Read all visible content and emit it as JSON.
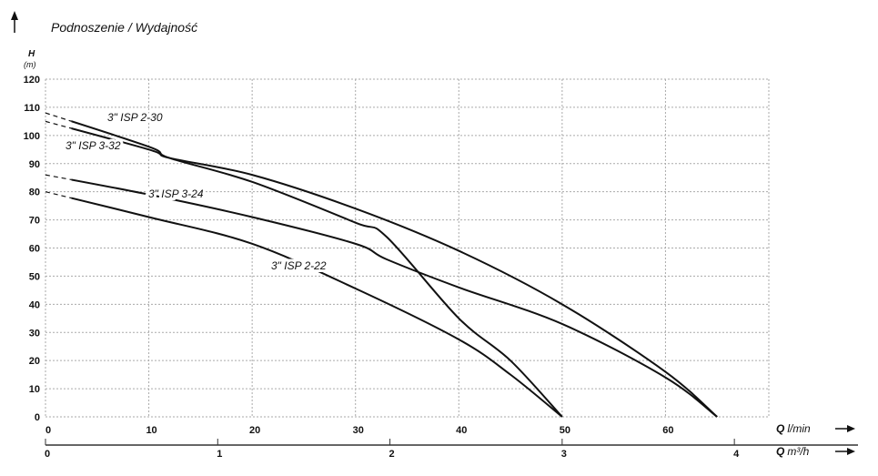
{
  "chart_data": {
    "type": "line",
    "title": "Podnoszenie / Wydajność",
    "ylabel": "H",
    "yunit": "(m)",
    "xlabel": "Q",
    "xunit": "l/min",
    "x2label": "Q",
    "x2unit": "m³/h",
    "xlim": [
      0,
      70
    ],
    "ylim": [
      0,
      120
    ],
    "grid": true,
    "grid_style": "dotted",
    "xticks": [
      "0",
      "10",
      "20",
      "30",
      "40",
      "50",
      "60"
    ],
    "xtick_values": [
      0,
      10,
      20,
      30,
      40,
      50,
      60
    ],
    "x2ticks": [
      "0",
      "1",
      "2",
      "3",
      "4"
    ],
    "x2tick_values": [
      0,
      1,
      2,
      3,
      4
    ],
    "yticks": [
      "0",
      "10",
      "20",
      "30",
      "40",
      "50",
      "60",
      "70",
      "80",
      "90",
      "100",
      "110",
      "120"
    ],
    "ytick_values": [
      0,
      10,
      20,
      30,
      40,
      50,
      60,
      70,
      80,
      90,
      100,
      110,
      120
    ],
    "dashed_below_q": 2.5,
    "series": [
      {
        "name": "3\" ISP 2-30",
        "x": [
          0,
          10,
          12,
          20,
          30,
          33,
          40,
          45,
          50
        ],
        "y": [
          108,
          96,
          92,
          83.5,
          69,
          64,
          35,
          20,
          0
        ]
      },
      {
        "name": "3\" ISP 3-32",
        "x": [
          0,
          10,
          12,
          20,
          30,
          40,
          50,
          60,
          65
        ],
        "y": [
          105,
          95,
          92,
          86,
          74,
          59,
          40,
          16,
          0
        ]
      },
      {
        "name": "3\" ISP 3-24",
        "x": [
          0,
          10,
          20,
          30,
          33,
          40,
          50,
          60,
          65
        ],
        "y": [
          86,
          79,
          71,
          61.5,
          56,
          46,
          33,
          14,
          0
        ]
      },
      {
        "name": "3\" ISP 2-22",
        "x": [
          0,
          10,
          20,
          30,
          40,
          45,
          50
        ],
        "y": [
          80,
          71,
          61.5,
          45.6,
          27.5,
          15,
          0
        ]
      }
    ],
    "line_color": "#111111",
    "grid_color": "#aaaaaa"
  }
}
